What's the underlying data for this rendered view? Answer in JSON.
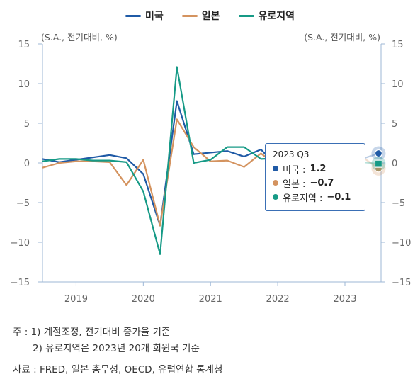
{
  "legend": [
    {
      "name": "미국",
      "color": "#1f5aa6"
    },
    {
      "name": "일본",
      "color": "#d4935f"
    },
    {
      "name": "유로지역",
      "color": "#169a86"
    }
  ],
  "unit_left": "(S.A., 전기대비, %)",
  "unit_right": "(S.A., 전기대비, %)",
  "tooltip": {
    "title": "2023 Q3",
    "rows": [
      {
        "label": "미국 : ",
        "value": "1.2",
        "color": "#1f5aa6"
      },
      {
        "label": "일본 : ",
        "value": "−0.7",
        "color": "#d4935f"
      },
      {
        "label": "유로지역 : ",
        "value": "−0.1",
        "color": "#169a86"
      }
    ]
  },
  "notes": {
    "line1": "주 : 1)  계절조정, 전기대비 증가율 기준",
    "line2": "2)  유로지역은 2023년 20개 회원국 기준",
    "source": "자료 :  FRED, 일본 총무성, OECD, 유럽연합 통계청"
  },
  "chart_data": {
    "type": "line",
    "x": [
      "2018Q3",
      "2018Q4",
      "2019Q1",
      "2019Q2",
      "2019Q3",
      "2019Q4",
      "2020Q1",
      "2020Q2",
      "2020Q3",
      "2020Q4",
      "2021Q1",
      "2021Q2",
      "2021Q3",
      "2021Q4",
      "2022Q1",
      "2022Q2",
      "2022Q3",
      "2022Q4",
      "2023Q1",
      "2023Q2",
      "2023Q3"
    ],
    "x_tick_labels": [
      "2019",
      "2020",
      "2021",
      "2022",
      "2023"
    ],
    "y_ticks": [
      "15",
      "10",
      "5",
      "0",
      "−5",
      "−10",
      "−15"
    ],
    "ylim": [
      -15,
      15
    ],
    "y2lim": [
      -15,
      15
    ],
    "series": [
      {
        "name": "미국",
        "color": "#1f5aa6",
        "values": [
          0.5,
          0.1,
          0.4,
          0.7,
          1.0,
          0.6,
          -1.4,
          -7.9,
          7.8,
          1.1,
          1.3,
          1.5,
          0.8,
          1.7,
          -0.5,
          -0.1,
          0.7,
          0.6,
          0.5,
          0.5,
          1.2
        ]
      },
      {
        "name": "일본",
        "color": "#d4935f",
        "values": [
          -0.6,
          0.0,
          0.2,
          0.2,
          0.1,
          -2.8,
          0.4,
          -7.9,
          5.5,
          2.0,
          0.2,
          0.3,
          -0.5,
          1.2,
          -0.4,
          1.0,
          -0.3,
          0.1,
          1.0,
          0.8,
          -0.7
        ]
      },
      {
        "name": "유로지역",
        "color": "#169a86",
        "values": [
          0.2,
          0.5,
          0.5,
          0.3,
          0.3,
          0.1,
          -3.6,
          -11.5,
          12.1,
          0.0,
          0.4,
          2.0,
          2.0,
          0.5,
          0.6,
          0.9,
          0.4,
          -0.1,
          0.1,
          0.1,
          -0.1
        ]
      }
    ]
  }
}
